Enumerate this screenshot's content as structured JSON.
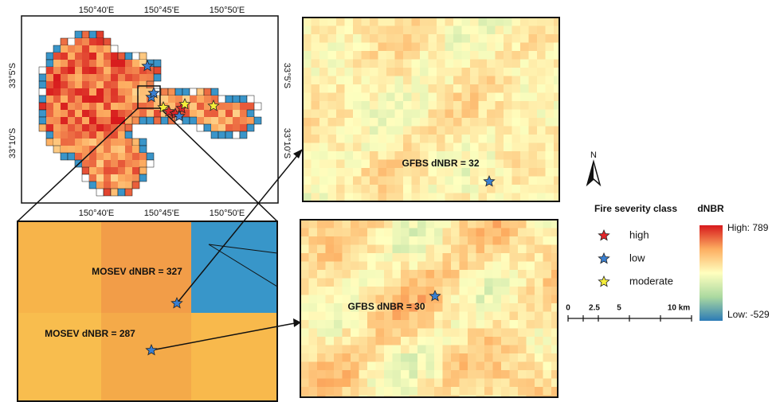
{
  "map": {
    "lon_labels_top": [
      "150°40'E",
      "150°45'E",
      "150°50'E"
    ],
    "lon_labels_bottom": [
      "150°40'E",
      "150°45'E",
      "150°50'E"
    ],
    "lat_labels_left": [
      "33°5'S",
      "33°10'S"
    ],
    "lat_labels_right": [
      "33°5'S",
      "33°10'S"
    ]
  },
  "zoom_panel": {
    "labels": [
      "MOSEV dNBR = 327",
      "MOSEV dNBR = 287"
    ]
  },
  "gfbs_panels": {
    "labels": [
      "GFBS dNBR = 32",
      "GFBS dNBR = 30"
    ]
  },
  "north_arrow": {
    "label": "N"
  },
  "legend": {
    "title": "Fire severity class",
    "items": [
      "high",
      "low",
      "moderate"
    ]
  },
  "colorbar": {
    "title": "dNBR",
    "high": "High: 789",
    "low": "Low: -529"
  },
  "scalebar": {
    "labels": [
      "0",
      "2.5",
      "5",
      "10 km"
    ]
  }
}
